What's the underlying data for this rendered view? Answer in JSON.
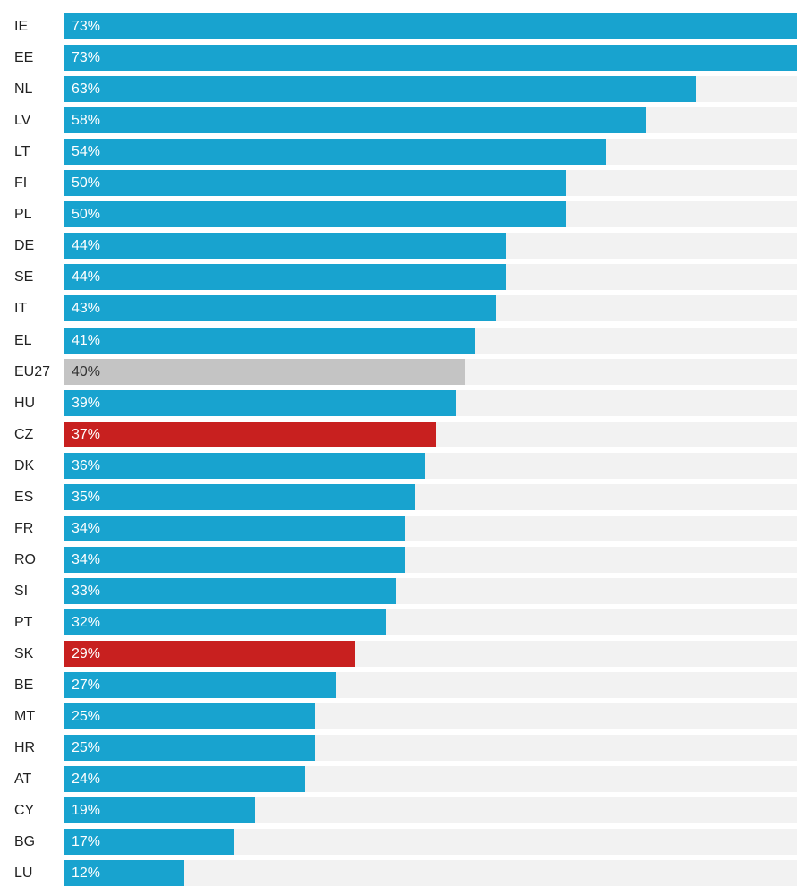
{
  "chart_data": {
    "type": "bar",
    "orientation": "horizontal",
    "title": "",
    "xlabel": "",
    "ylabel": "",
    "xlim": [
      0,
      73
    ],
    "unit": "%",
    "categories": [
      "IE",
      "EE",
      "NL",
      "LV",
      "LT",
      "FI",
      "PL",
      "DE",
      "SE",
      "IT",
      "EL",
      "EU27",
      "HU",
      "CZ",
      "DK",
      "ES",
      "FR",
      "RO",
      "SI",
      "PT",
      "SK",
      "BE",
      "MT",
      "HR",
      "AT",
      "CY",
      "BG",
      "LU"
    ],
    "values": [
      73,
      73,
      63,
      58,
      54,
      50,
      50,
      44,
      44,
      43,
      41,
      40,
      39,
      37,
      36,
      35,
      34,
      34,
      33,
      32,
      29,
      27,
      25,
      25,
      24,
      19,
      17,
      12
    ],
    "labels": [
      "73%",
      "73%",
      "63%",
      "58%",
      "54%",
      "50%",
      "50%",
      "44%",
      "44%",
      "43%",
      "41%",
      "40%",
      "39%",
      "37%",
      "36%",
      "35%",
      "34%",
      "34%",
      "33%",
      "32%",
      "29%",
      "27%",
      "25%",
      "25%",
      "24%",
      "19%",
      "17%",
      "12%"
    ],
    "highlight": {
      "EU27": "#c4c4c4",
      "CZ": "#c8201f",
      "SK": "#c8201f"
    },
    "colors": {
      "default_bar": "#18a3cf",
      "track": "#f2f2f2",
      "label_light": "#ffffff",
      "label_dark": "#333333"
    },
    "grid": false,
    "legend": "none"
  }
}
